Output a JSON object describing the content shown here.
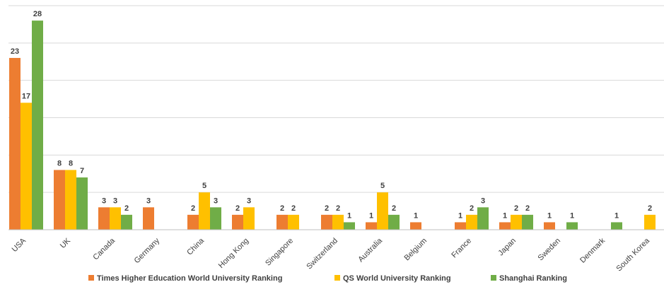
{
  "chart_data": {
    "type": "bar",
    "title": "",
    "xlabel": "",
    "ylabel": "",
    "ylim": [
      0,
      30
    ],
    "grid": true,
    "legend": "bottom",
    "categories": [
      "USA",
      "UK",
      "Canada",
      "Germany",
      "China",
      "Hong Kong",
      "Singapore",
      "Switzerland",
      "Australia",
      "Belgium",
      "France",
      "Japan",
      "Sweden",
      "Denmark",
      "South Korea"
    ],
    "series": [
      {
        "name": "Times Higher Education World University Ranking",
        "color": "#ED7D31",
        "values": [
          23,
          8,
          3,
          3,
          2,
          2,
          2,
          2,
          1,
          1,
          1,
          1,
          1,
          null,
          null
        ]
      },
      {
        "name": "QS World University Ranking",
        "color": "#FFC000",
        "values": [
          17,
          8,
          3,
          null,
          5,
          3,
          2,
          2,
          5,
          null,
          2,
          2,
          null,
          null,
          2
        ]
      },
      {
        "name": "Shanghai Ranking",
        "color": "#70AD47",
        "values": [
          28,
          7,
          2,
          null,
          3,
          null,
          null,
          1,
          2,
          null,
          3,
          2,
          1,
          1,
          null
        ]
      }
    ]
  }
}
